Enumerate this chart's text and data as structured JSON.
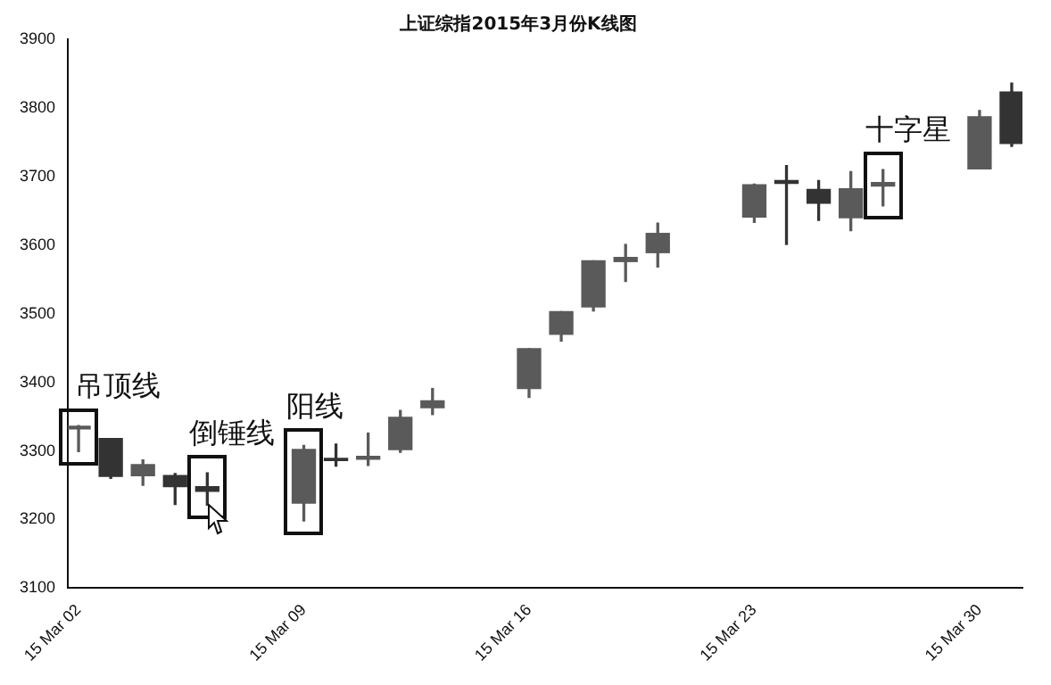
{
  "chart_data": {
    "type": "candlestick",
    "title": "上证综指2015年3月份K线图",
    "x": [
      "2015-03-02",
      "2015-03-03",
      "2015-03-04",
      "2015-03-05",
      "2015-03-06",
      "2015-03-09",
      "2015-03-10",
      "2015-03-11",
      "2015-03-12",
      "2015-03-13",
      "2015-03-16",
      "2015-03-17",
      "2015-03-18",
      "2015-03-19",
      "2015-03-20",
      "2015-03-23",
      "2015-03-24",
      "2015-03-25",
      "2015-03-26",
      "2015-03-27",
      "2015-03-30",
      "2015-03-31"
    ],
    "ohlc": [
      [
        3332,
        3337,
        3299,
        3336
      ],
      [
        3318,
        3318,
        3260,
        3263
      ],
      [
        3264,
        3287,
        3250,
        3280
      ],
      [
        3264,
        3267,
        3222,
        3248
      ],
      [
        3248,
        3268,
        3221,
        3241
      ],
      [
        3224,
        3308,
        3198,
        3302
      ],
      [
        3289,
        3310,
        3278,
        3286
      ],
      [
        3288,
        3326,
        3279,
        3292
      ],
      [
        3302,
        3359,
        3298,
        3349
      ],
      [
        3363,
        3391,
        3353,
        3373
      ],
      [
        3391,
        3449,
        3378,
        3449
      ],
      [
        3470,
        3503,
        3460,
        3503
      ],
      [
        3510,
        3577,
        3504,
        3577
      ],
      [
        3576,
        3601,
        3547,
        3582
      ],
      [
        3589,
        3632,
        3568,
        3617
      ],
      [
        3641,
        3689,
        3633,
        3688
      ],
      [
        3694,
        3716,
        3601,
        3690
      ],
      [
        3681,
        3694,
        3636,
        3661
      ],
      [
        3640,
        3707,
        3621,
        3682
      ],
      [
        3686,
        3710,
        3657,
        3691
      ],
      [
        3711,
        3796,
        3711,
        3787
      ],
      [
        3823,
        3836,
        3744,
        3748
      ]
    ],
    "colors": [
      "#5a5a5a",
      "#333333",
      "#5a5a5a",
      "#333333",
      "#333333",
      "#5a5a5a",
      "#333333",
      "#5a5a5a",
      "#5a5a5a",
      "#5a5a5a",
      "#5a5a5a",
      "#5a5a5a",
      "#5a5a5a",
      "#5a5a5a",
      "#5a5a5a",
      "#5a5a5a",
      "#333333",
      "#333333",
      "#5a5a5a",
      "#5a5a5a",
      "#5a5a5a",
      "#333333"
    ],
    "xlim": [
      "2015-03-01T16:00",
      "2015-03-31T08:00"
    ],
    "xticks": [
      {
        "value": "2015-03-02",
        "label": "15 Mar 02"
      },
      {
        "value": "2015-03-09",
        "label": "15 Mar 09"
      },
      {
        "value": "2015-03-16",
        "label": "15 Mar 16"
      },
      {
        "value": "2015-03-23",
        "label": "15 Mar 23"
      },
      {
        "value": "2015-03-30",
        "label": "15 Mar 30"
      }
    ],
    "ylim": [
      3100,
      3900
    ],
    "yticks": [
      3100,
      3200,
      3300,
      3400,
      3500,
      3600,
      3700,
      3800,
      3900
    ],
    "grid": false,
    "legend": false,
    "annotations": [
      {
        "text": "吊顶线",
        "x": "2015-03-02",
        "y": 3337
      },
      {
        "text": "倒锤线",
        "x": "2015-03-06",
        "y": 3268
      },
      {
        "text": "阳线",
        "x": "2015-03-09",
        "y": 3308
      },
      {
        "text": "十字星",
        "x": "2015-03-27",
        "y": 3710
      }
    ]
  }
}
